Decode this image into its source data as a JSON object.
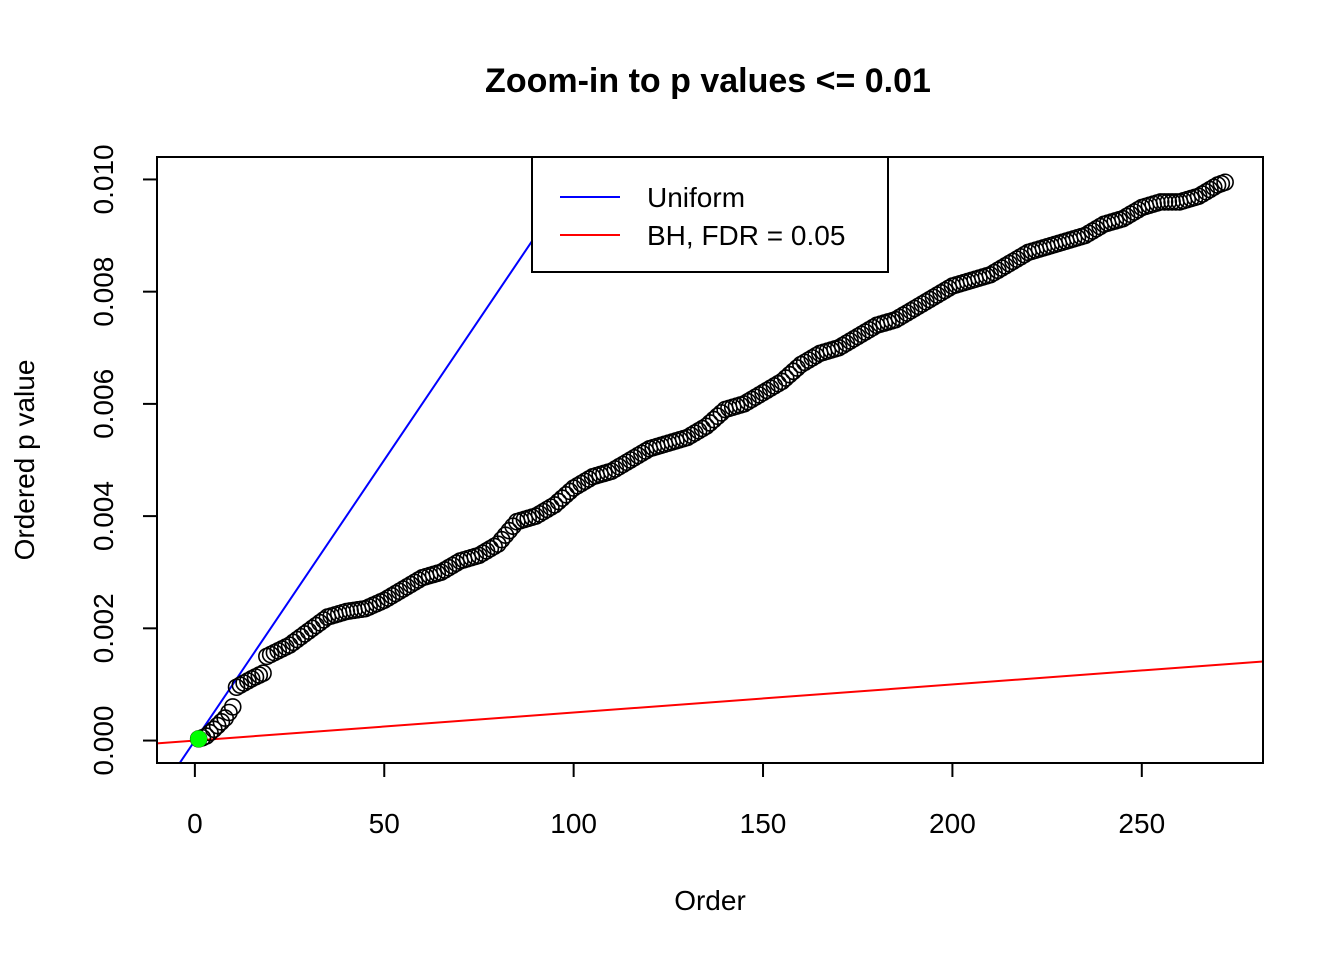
{
  "chart_data": {
    "type": "scatter",
    "title": "Zoom-in to p values <= 0.01",
    "xlabel": "Order",
    "ylabel": "Ordered p value",
    "xlim": [
      -10,
      282
    ],
    "ylim": [
      -0.0004,
      0.0104
    ],
    "x_ticks": [
      0,
      50,
      100,
      150,
      200,
      250
    ],
    "y_ticks": [
      0.0,
      0.002,
      0.004,
      0.006,
      0.008,
      0.01
    ],
    "x_tick_labels": [
      "0",
      "50",
      "100",
      "150",
      "200",
      "250"
    ],
    "y_tick_labels": [
      "0.000",
      "0.002",
      "0.004",
      "0.006",
      "0.008",
      "0.010"
    ],
    "grid": false,
    "legend_position": "top-center",
    "colors": {
      "points": "#000000",
      "uniform": "#0000ff",
      "bh": "#ff0000",
      "highlight": "#00ff00"
    },
    "series": [
      {
        "name": "ordered p values",
        "kind": "points",
        "n": 272,
        "anchors": [
          [
            1,
            3e-05
          ],
          [
            2,
            5e-05
          ],
          [
            3,
            8e-05
          ],
          [
            5,
            0.0002
          ],
          [
            8,
            0.0004
          ],
          [
            10,
            0.0006
          ],
          [
            11,
            0.00095
          ],
          [
            15,
            0.0011
          ],
          [
            18,
            0.0012
          ],
          [
            19,
            0.0015
          ],
          [
            25,
            0.0017
          ],
          [
            30,
            0.00195
          ],
          [
            35,
            0.0022
          ],
          [
            40,
            0.0023
          ],
          [
            45,
            0.00235
          ],
          [
            50,
            0.0025
          ],
          [
            55,
            0.0027
          ],
          [
            60,
            0.0029
          ],
          [
            65,
            0.003
          ],
          [
            70,
            0.0032
          ],
          [
            75,
            0.0033
          ],
          [
            80,
            0.0035
          ],
          [
            85,
            0.0039
          ],
          [
            90,
            0.004
          ],
          [
            95,
            0.0042
          ],
          [
            100,
            0.0045
          ],
          [
            105,
            0.0047
          ],
          [
            110,
            0.0048
          ],
          [
            115,
            0.005
          ],
          [
            120,
            0.0052
          ],
          [
            125,
            0.0053
          ],
          [
            130,
            0.0054
          ],
          [
            135,
            0.0056
          ],
          [
            140,
            0.0059
          ],
          [
            145,
            0.006
          ],
          [
            150,
            0.0062
          ],
          [
            155,
            0.0064
          ],
          [
            160,
            0.0067
          ],
          [
            165,
            0.0069
          ],
          [
            170,
            0.007
          ],
          [
            175,
            0.0072
          ],
          [
            180,
            0.0074
          ],
          [
            185,
            0.0075
          ],
          [
            190,
            0.0077
          ],
          [
            195,
            0.0079
          ],
          [
            200,
            0.0081
          ],
          [
            205,
            0.0082
          ],
          [
            210,
            0.0083
          ],
          [
            215,
            0.0085
          ],
          [
            220,
            0.0087
          ],
          [
            225,
            0.0088
          ],
          [
            230,
            0.0089
          ],
          [
            235,
            0.009
          ],
          [
            240,
            0.0092
          ],
          [
            245,
            0.0093
          ],
          [
            250,
            0.0095
          ],
          [
            255,
            0.0096
          ],
          [
            260,
            0.0096
          ],
          [
            265,
            0.0097
          ],
          [
            270,
            0.0099
          ],
          [
            272,
            0.00995
          ]
        ]
      },
      {
        "name": "significant",
        "kind": "points",
        "x": [
          1
        ],
        "y": [
          3e-05
        ]
      },
      {
        "name": "Uniform",
        "kind": "line",
        "intercept": 0,
        "slope": 0.0001
      },
      {
        "name": "BH, FDR = 0.05",
        "kind": "line",
        "intercept": 0,
        "slope": 5e-06
      }
    ],
    "legend": [
      {
        "label": "Uniform",
        "color": "#0000ff"
      },
      {
        "label": "BH, FDR = 0.05",
        "color": "#ff0000"
      }
    ]
  }
}
